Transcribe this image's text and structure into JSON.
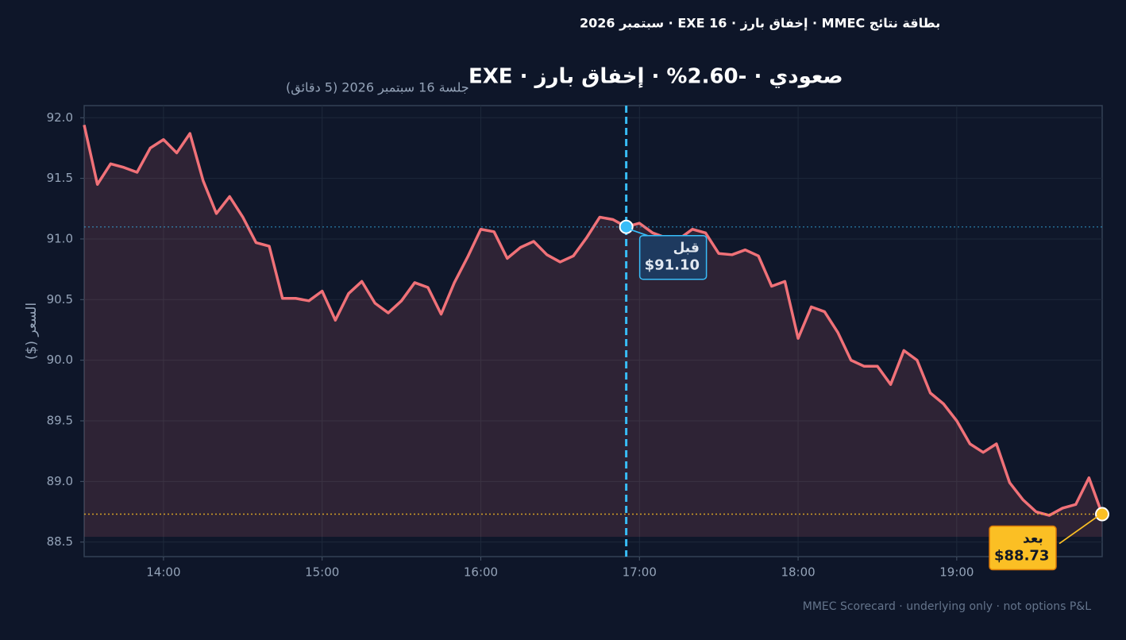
{
  "chart_data": {
    "type": "line",
    "header": "بطاقة نتائج MMEC · إخفاق بارز · 16 EXE · سبتمبر 2026",
    "title": "صعودي · -2.60% · إخفاق بارز · EXE",
    "subtitle": "جلسة 16 سبتمبر 2026 (5 دقائق)",
    "y_label": "السعر ($)",
    "footer": "MMEC Scorecard · underlying only · not options P&L",
    "x": [
      "13:30",
      "13:35",
      "13:40",
      "13:45",
      "13:50",
      "13:55",
      "14:00",
      "14:05",
      "14:10",
      "14:15",
      "14:20",
      "14:25",
      "14:30",
      "14:35",
      "14:40",
      "14:45",
      "14:50",
      "14:55",
      "15:00",
      "15:05",
      "15:10",
      "15:15",
      "15:20",
      "15:25",
      "15:30",
      "15:35",
      "15:40",
      "15:45",
      "15:50",
      "15:55",
      "16:00",
      "16:05",
      "16:10",
      "16:15",
      "16:20",
      "16:25",
      "16:30",
      "16:35",
      "16:40",
      "16:45",
      "16:50",
      "16:55",
      "17:00",
      "17:05",
      "17:10",
      "17:15",
      "17:20",
      "17:25",
      "17:30",
      "17:35",
      "17:40",
      "17:45",
      "17:50",
      "17:55",
      "18:00",
      "18:05",
      "18:10",
      "18:15",
      "18:20",
      "18:25",
      "18:30",
      "18:35",
      "18:40",
      "18:45",
      "18:50",
      "18:55",
      "19:00",
      "19:05",
      "19:10",
      "19:15",
      "19:20",
      "19:25",
      "19:30",
      "19:35",
      "19:40",
      "19:45",
      "19:50",
      "19:55"
    ],
    "series": [
      {
        "color": "#f07178",
        "values": [
          91.94,
          91.45,
          91.62,
          91.59,
          91.55,
          91.75,
          91.82,
          91.71,
          91.87,
          91.48,
          91.21,
          91.35,
          91.18,
          90.97,
          90.94,
          90.51,
          90.51,
          90.49,
          90.57,
          90.33,
          90.55,
          90.65,
          90.47,
          90.39,
          90.49,
          90.64,
          90.6,
          90.38,
          90.64,
          90.85,
          91.08,
          91.06,
          90.84,
          90.93,
          90.98,
          90.87,
          90.81,
          90.86,
          91.01,
          91.18,
          91.16,
          91.1,
          91.13,
          91.05,
          91.01,
          91.0,
          91.08,
          91.05,
          90.88,
          90.87,
          90.91,
          90.86,
          90.61,
          90.65,
          90.18,
          90.44,
          90.4,
          90.23,
          90.0,
          89.95,
          89.95,
          89.8,
          90.08,
          90.0,
          89.73,
          89.64,
          89.5,
          89.31,
          89.24,
          89.31,
          88.99,
          88.85,
          88.75,
          88.72,
          88.78,
          88.81,
          89.03,
          88.73
        ]
      }
    ],
    "annotations": [
      {
        "text": "قبل",
        "x": "16:55",
        "value": 91.1,
        "value_label": "$91.10",
        "color": "#38bdf8"
      },
      {
        "text": "بعد",
        "x": "19:55",
        "value": 88.73,
        "value_label": "$88.73",
        "color": "#fbbf24"
      }
    ],
    "xlim": [
      "13:30",
      "19:55"
    ],
    "xticks": [
      "14:00",
      "15:00",
      "16:00",
      "17:00",
      "18:00",
      "19:00"
    ],
    "ylim": [
      88.38,
      92.1
    ],
    "yticks": [
      88.5,
      {
        "value": 89,
        "label": "89.0"
      },
      89.5,
      {
        "value": 90,
        "label": "90.0"
      },
      90.5,
      {
        "value": 91,
        "label": "91.0"
      },
      91.5,
      {
        "value": 92,
        "label": "92.0"
      }
    ],
    "grid": true
  }
}
